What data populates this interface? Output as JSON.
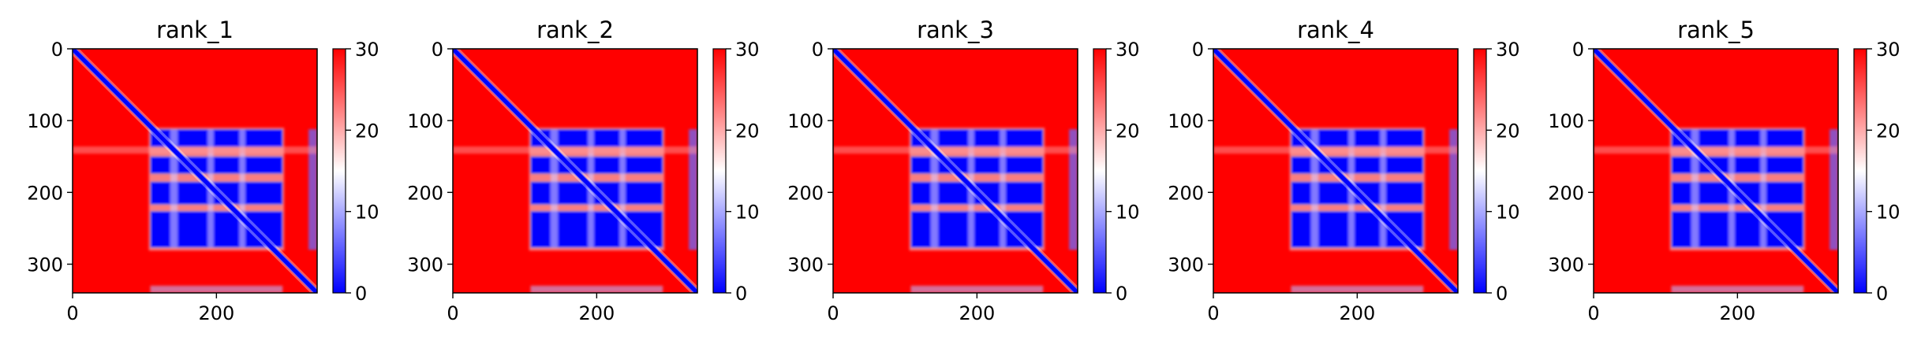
{
  "chart_data": [
    {
      "type": "heatmap",
      "title": "rank_1",
      "xlim": [
        0,
        340
      ],
      "ylim": [
        340,
        0
      ],
      "x_ticks": [
        0,
        200
      ],
      "y_ticks": [
        0,
        100,
        200,
        300
      ],
      "colorbar": {
        "min": 0,
        "max": 30,
        "ticks": [
          0,
          10,
          20,
          30
        ],
        "colormap": "bwr"
      }
    },
    {
      "type": "heatmap",
      "title": "rank_2",
      "xlim": [
        0,
        340
      ],
      "ylim": [
        340,
        0
      ],
      "x_ticks": [
        0,
        200
      ],
      "y_ticks": [
        0,
        100,
        200,
        300
      ],
      "colorbar": {
        "min": 0,
        "max": 30,
        "ticks": [
          0,
          10,
          20,
          30
        ],
        "colormap": "bwr"
      }
    },
    {
      "type": "heatmap",
      "title": "rank_3",
      "xlim": [
        0,
        340
      ],
      "ylim": [
        340,
        0
      ],
      "x_ticks": [
        0,
        200
      ],
      "y_ticks": [
        0,
        100,
        200,
        300
      ],
      "colorbar": {
        "min": 0,
        "max": 30,
        "ticks": [
          0,
          10,
          20,
          30
        ],
        "colormap": "bwr"
      }
    },
    {
      "type": "heatmap",
      "title": "rank_4",
      "xlim": [
        0,
        340
      ],
      "ylim": [
        340,
        0
      ],
      "x_ticks": [
        0,
        200
      ],
      "y_ticks": [
        0,
        100,
        200,
        300
      ],
      "colorbar": {
        "min": 0,
        "max": 30,
        "ticks": [
          0,
          10,
          20,
          30
        ],
        "colormap": "bwr"
      }
    },
    {
      "type": "heatmap",
      "title": "rank_5",
      "xlim": [
        0,
        340
      ],
      "ylim": [
        340,
        0
      ],
      "x_ticks": [
        0,
        200
      ],
      "y_ticks": [
        0,
        100,
        200,
        300
      ],
      "colorbar": {
        "min": 0,
        "max": 30,
        "ticks": [
          0,
          10,
          20,
          30
        ],
        "colormap": "bwr"
      }
    }
  ],
  "colors": {
    "high": "#ff0000",
    "mid": "#ffffff",
    "low": "#0000ff",
    "axis": "#000000"
  }
}
